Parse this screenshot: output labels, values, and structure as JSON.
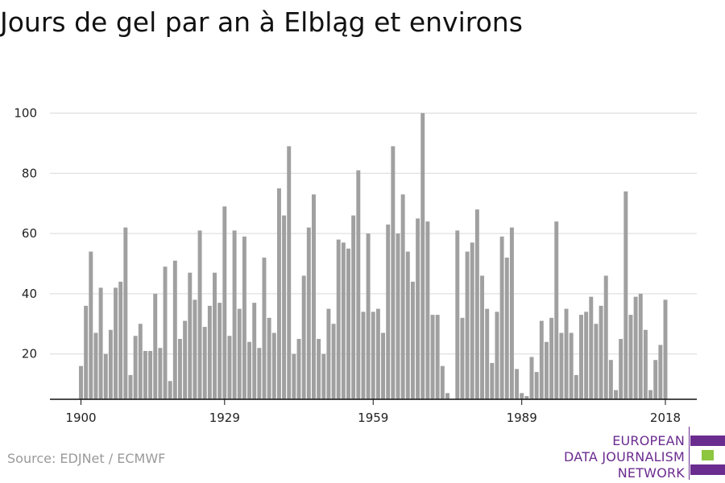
{
  "chart_data": {
    "type": "bar",
    "title": "Jours de gel par an à Elbląg et environs",
    "xlabel": "",
    "ylabel": "",
    "x_start": 1900,
    "x_end": 2018,
    "ylim": [
      5,
      100
    ],
    "y_ticks": [
      20,
      40,
      60,
      80,
      100
    ],
    "x_ticks": [
      1900,
      1929,
      1959,
      1989,
      2018
    ],
    "grid": "horizontal",
    "bar_color": "#a0a0a0",
    "years": [
      1900,
      1901,
      1902,
      1903,
      1904,
      1905,
      1906,
      1907,
      1908,
      1909,
      1910,
      1911,
      1912,
      1913,
      1914,
      1915,
      1916,
      1917,
      1918,
      1919,
      1920,
      1921,
      1922,
      1923,
      1924,
      1925,
      1926,
      1927,
      1928,
      1929,
      1930,
      1931,
      1932,
      1933,
      1934,
      1935,
      1936,
      1937,
      1938,
      1939,
      1940,
      1941,
      1942,
      1943,
      1944,
      1945,
      1946,
      1947,
      1948,
      1949,
      1950,
      1951,
      1952,
      1953,
      1954,
      1955,
      1956,
      1957,
      1958,
      1959,
      1960,
      1961,
      1962,
      1963,
      1964,
      1965,
      1966,
      1967,
      1968,
      1969,
      1970,
      1971,
      1972,
      1973,
      1974,
      1975,
      1976,
      1977,
      1978,
      1979,
      1980,
      1981,
      1982,
      1983,
      1984,
      1985,
      1986,
      1987,
      1988,
      1989,
      1990,
      1991,
      1992,
      1993,
      1994,
      1995,
      1996,
      1997,
      1998,
      1999,
      2000,
      2001,
      2002,
      2003,
      2004,
      2005,
      2006,
      2007,
      2008,
      2009,
      2010,
      2011,
      2012,
      2013,
      2014,
      2015,
      2016,
      2017,
      2018
    ],
    "values": [
      16,
      36,
      54,
      27,
      42,
      20,
      28,
      42,
      44,
      62,
      13,
      26,
      30,
      21,
      21,
      40,
      22,
      49,
      11,
      51,
      25,
      31,
      47,
      38,
      61,
      29,
      36,
      47,
      37,
      69,
      26,
      61,
      35,
      59,
      24,
      37,
      22,
      52,
      32,
      27,
      75,
      66,
      89,
      20,
      25,
      46,
      62,
      73,
      25,
      20,
      35,
      30,
      58,
      57,
      55,
      66,
      81,
      34,
      60,
      34,
      35,
      27,
      63,
      89,
      60,
      73,
      54,
      44,
      65,
      100,
      64,
      33,
      33,
      16,
      7,
      5,
      61,
      32,
      54,
      57,
      68,
      46,
      35,
      17,
      34,
      59,
      52,
      62,
      15,
      7,
      6,
      19,
      14,
      31,
      24,
      32,
      64,
      27,
      35,
      27,
      13,
      33,
      34,
      39,
      30,
      36,
      46,
      18,
      8,
      25,
      74,
      33,
      39,
      40,
      28,
      8,
      18,
      23,
      38
    ]
  },
  "source": "Source: EDJNet / ECMWF",
  "logo": {
    "line1": "EUROPEAN",
    "line2": "DATA JOURNALISM",
    "line3": "NETWORK",
    "purple": "#6b2c8f",
    "green": "#8dc63f"
  }
}
